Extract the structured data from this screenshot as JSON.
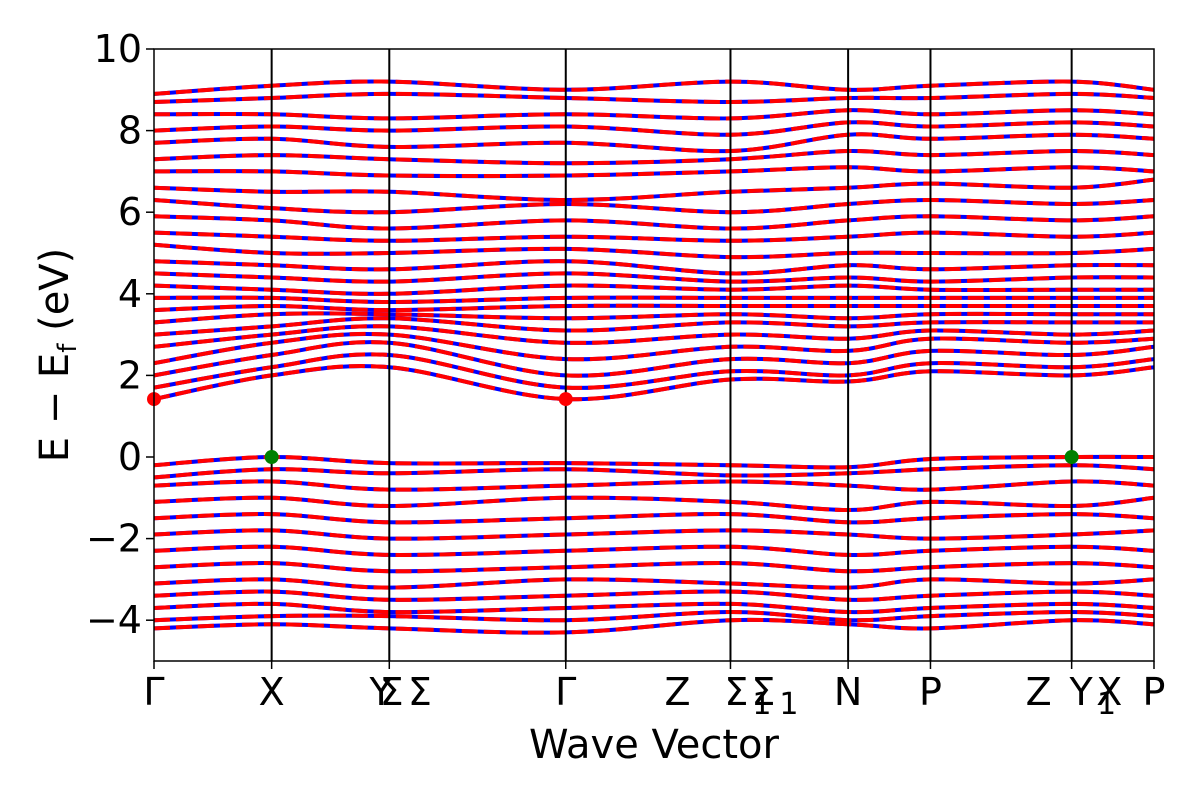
{
  "chart_data": {
    "type": "line",
    "title": "",
    "xlabel": "Wave Vector",
    "ylabel": "E − E",
    "ylabel_sub": "f",
    "ylabel_unit": " (eV)",
    "ylim": [
      -5,
      10
    ],
    "yticks": [
      -4,
      -2,
      0,
      2,
      4,
      6,
      8,
      10
    ],
    "ytick_labels": [
      "−4",
      "−2",
      "0",
      "2",
      "4",
      "6",
      "8",
      "10"
    ],
    "kpath_positions": [
      0,
      1,
      2,
      3.5,
      4.9,
      5.9,
      6.6,
      7.8,
      8.5
    ],
    "kpoints": [
      {
        "x": 0,
        "label": "Γ"
      },
      {
        "x": 1,
        "label": "X"
      },
      {
        "x": 1.93,
        "label": "Y"
      },
      {
        "x": 2.02,
        "label": "Σ"
      },
      {
        "x": 2.26,
        "label": "Σ"
      },
      {
        "x": 3.5,
        "label": "Γ"
      },
      {
        "x": 4.45,
        "label": "Z"
      },
      {
        "x": 4.95,
        "label": "Σ"
      },
      {
        "x": 5.18,
        "label": "Σ"
      },
      {
        "x": 5.9,
        "label": "N"
      },
      {
        "x": 6.6,
        "label": "P"
      },
      {
        "x": 7.52,
        "label": "Z"
      },
      {
        "x": 7.88,
        "label": "Y"
      },
      {
        "x": 8.12,
        "label": "X"
      },
      {
        "x": 8.5,
        "label": "P"
      }
    ],
    "kpoint_subscripts": [
      {
        "x": 4.95,
        "label": "1"
      },
      {
        "x": 5.18,
        "label": "1"
      },
      {
        "x": 7.88,
        "label": "1"
      }
    ],
    "vbm": [
      {
        "x": 1.0,
        "y": 0.0
      },
      {
        "x": 7.8,
        "y": 0.0
      }
    ],
    "cbm": [
      {
        "x": 0.0,
        "y": 1.42
      },
      {
        "x": 3.5,
        "y": 1.42
      }
    ],
    "series": [
      {
        "values_note": "",
        "style": "solid",
        "color": "#0000ff"
      },
      {
        "style": "dashed",
        "color": "#ff0000"
      }
    ],
    "bands": [
      {
        "x": [
          0,
          1,
          2,
          3.5,
          4.9,
          5.9,
          6.6,
          7.8,
          8.5
        ],
        "y": [
          -0.2,
          0.0,
          -0.15,
          -0.15,
          -0.2,
          -0.25,
          -0.05,
          0.0,
          0.0
        ]
      },
      {
        "x": [
          0,
          1,
          2,
          3.5,
          4.9,
          5.9,
          6.6,
          7.8,
          8.5
        ],
        "y": [
          -0.5,
          -0.3,
          -0.4,
          -0.3,
          -0.45,
          -0.4,
          -0.3,
          -0.2,
          -0.3
        ]
      },
      {
        "x": [
          0,
          1,
          2,
          3.5,
          4.9,
          5.9,
          6.6,
          7.8,
          8.5
        ],
        "y": [
          -0.7,
          -0.6,
          -0.8,
          -0.7,
          -0.6,
          -0.7,
          -0.8,
          -0.6,
          -0.7
        ]
      },
      {
        "x": [
          0,
          1,
          2,
          3.5,
          4.9,
          5.9,
          6.6,
          7.8,
          8.5
        ],
        "y": [
          -1.1,
          -1.0,
          -1.2,
          -1.0,
          -1.1,
          -1.3,
          -1.1,
          -1.2,
          -1.0
        ]
      },
      {
        "x": [
          0,
          1,
          2,
          3.5,
          4.9,
          5.9,
          6.6,
          7.8,
          8.5
        ],
        "y": [
          -1.5,
          -1.4,
          -1.6,
          -1.5,
          -1.4,
          -1.6,
          -1.5,
          -1.4,
          -1.5
        ]
      },
      {
        "x": [
          0,
          1,
          2,
          3.5,
          4.9,
          5.9,
          6.6,
          7.8,
          8.5
        ],
        "y": [
          -1.9,
          -1.8,
          -2.0,
          -1.9,
          -1.8,
          -1.9,
          -2.0,
          -1.9,
          -1.8
        ]
      },
      {
        "x": [
          0,
          1,
          2,
          3.5,
          4.9,
          5.9,
          6.6,
          7.8,
          8.5
        ],
        "y": [
          -2.3,
          -2.2,
          -2.4,
          -2.3,
          -2.2,
          -2.4,
          -2.3,
          -2.2,
          -2.3
        ]
      },
      {
        "x": [
          0,
          1,
          2,
          3.5,
          4.9,
          5.9,
          6.6,
          7.8,
          8.5
        ],
        "y": [
          -2.7,
          -2.6,
          -2.8,
          -2.7,
          -2.6,
          -2.8,
          -2.7,
          -2.6,
          -2.7
        ]
      },
      {
        "x": [
          0,
          1,
          2,
          3.5,
          4.9,
          5.9,
          6.6,
          7.8,
          8.5
        ],
        "y": [
          -3.1,
          -3.0,
          -3.2,
          -3.0,
          -3.1,
          -3.2,
          -3.0,
          -3.1,
          -3.0
        ]
      },
      {
        "x": [
          0,
          1,
          2,
          3.5,
          4.9,
          5.9,
          6.6,
          7.8,
          8.5
        ],
        "y": [
          -3.4,
          -3.3,
          -3.5,
          -3.4,
          -3.3,
          -3.5,
          -3.4,
          -3.3,
          -3.4
        ]
      },
      {
        "x": [
          0,
          1,
          2,
          3.5,
          4.9,
          5.9,
          6.6,
          7.8,
          8.5
        ],
        "y": [
          -3.7,
          -3.6,
          -3.8,
          -3.7,
          -3.6,
          -3.8,
          -3.7,
          -3.6,
          -3.7
        ]
      },
      {
        "x": [
          0,
          1,
          2,
          3.5,
          4.9,
          5.9,
          6.6,
          7.8,
          8.5
        ],
        "y": [
          -4.0,
          -3.9,
          -3.9,
          -4.0,
          -3.8,
          -4.0,
          -3.9,
          -3.8,
          -3.9
        ]
      },
      {
        "x": [
          0,
          1,
          2,
          3.5,
          4.9,
          5.9,
          6.6,
          7.8,
          8.5
        ],
        "y": [
          -4.2,
          -4.1,
          -4.2,
          -4.3,
          -4.0,
          -4.1,
          -4.2,
          -4.0,
          -4.1
        ]
      },
      {
        "x": [
          0,
          1,
          2,
          3.5,
          4.9,
          5.9,
          6.6,
          7.8,
          8.5
        ],
        "y": [
          1.42,
          2.0,
          2.2,
          1.42,
          1.9,
          1.85,
          2.1,
          2.0,
          2.2
        ]
      },
      {
        "x": [
          0,
          1,
          2,
          3.5,
          4.9,
          5.9,
          6.6,
          7.8,
          8.5
        ],
        "y": [
          1.7,
          2.2,
          2.5,
          1.7,
          2.1,
          2.0,
          2.3,
          2.2,
          2.4
        ]
      },
      {
        "x": [
          0,
          1,
          2,
          3.5,
          4.9,
          5.9,
          6.6,
          7.8,
          8.5
        ],
        "y": [
          2.0,
          2.5,
          2.8,
          2.0,
          2.4,
          2.3,
          2.6,
          2.5,
          2.7
        ]
      },
      {
        "x": [
          0,
          1,
          2,
          3.5,
          4.9,
          5.9,
          6.6,
          7.8,
          8.5
        ],
        "y": [
          2.3,
          2.8,
          3.0,
          2.4,
          2.7,
          2.6,
          2.9,
          2.8,
          2.9
        ]
      },
      {
        "x": [
          0,
          1,
          2,
          3.5,
          4.9,
          5.9,
          6.6,
          7.8,
          8.5
        ],
        "y": [
          2.7,
          3.0,
          3.2,
          2.8,
          3.0,
          2.9,
          3.1,
          3.0,
          3.1
        ]
      },
      {
        "x": [
          0,
          1,
          2,
          3.5,
          4.9,
          5.9,
          6.6,
          7.8,
          8.5
        ],
        "y": [
          3.0,
          3.2,
          3.4,
          3.1,
          3.3,
          3.2,
          3.3,
          3.3,
          3.3
        ]
      },
      {
        "x": [
          0,
          1,
          2,
          3.5,
          4.9,
          5.9,
          6.6,
          7.8,
          8.5
        ],
        "y": [
          3.3,
          3.5,
          3.5,
          3.4,
          3.5,
          3.4,
          3.5,
          3.5,
          3.5
        ]
      },
      {
        "x": [
          0,
          1,
          2,
          3.5,
          4.9,
          5.9,
          6.6,
          7.8,
          8.5
        ],
        "y": [
          3.6,
          3.7,
          3.6,
          3.7,
          3.7,
          3.7,
          3.7,
          3.7,
          3.7
        ]
      },
      {
        "x": [
          0,
          1,
          2,
          3.5,
          4.9,
          5.9,
          6.6,
          7.8,
          8.5
        ],
        "y": [
          3.9,
          3.9,
          3.8,
          3.9,
          3.9,
          3.9,
          3.9,
          3.9,
          3.9
        ]
      },
      {
        "x": [
          0,
          1,
          2,
          3.5,
          4.9,
          5.9,
          6.6,
          7.8,
          8.5
        ],
        "y": [
          4.2,
          4.1,
          4.0,
          4.2,
          4.1,
          4.2,
          4.1,
          4.1,
          4.1
        ]
      },
      {
        "x": [
          0,
          1,
          2,
          3.5,
          4.9,
          5.9,
          6.6,
          7.8,
          8.5
        ],
        "y": [
          4.5,
          4.4,
          4.3,
          4.5,
          4.3,
          4.4,
          4.3,
          4.4,
          4.4
        ]
      },
      {
        "x": [
          0,
          1,
          2,
          3.5,
          4.9,
          5.9,
          6.6,
          7.8,
          8.5
        ],
        "y": [
          4.8,
          4.7,
          4.6,
          4.8,
          4.5,
          4.7,
          4.6,
          4.7,
          4.7
        ]
      },
      {
        "x": [
          0,
          1,
          2,
          3.5,
          4.9,
          5.9,
          6.6,
          7.8,
          8.5
        ],
        "y": [
          5.2,
          5.0,
          5.0,
          5.1,
          4.9,
          5.0,
          5.0,
          5.0,
          5.1
        ]
      },
      {
        "x": [
          0,
          1,
          2,
          3.5,
          4.9,
          5.9,
          6.6,
          7.8,
          8.5
        ],
        "y": [
          5.5,
          5.4,
          5.3,
          5.4,
          5.3,
          5.4,
          5.5,
          5.4,
          5.5
        ]
      },
      {
        "x": [
          0,
          1,
          2,
          3.5,
          4.9,
          5.9,
          6.6,
          7.8,
          8.5
        ],
        "y": [
          5.9,
          5.8,
          5.6,
          5.8,
          5.6,
          5.8,
          5.9,
          5.8,
          5.9
        ]
      },
      {
        "x": [
          0,
          1,
          2,
          3.5,
          4.9,
          5.9,
          6.6,
          7.8,
          8.5
        ],
        "y": [
          6.3,
          6.1,
          6.0,
          6.2,
          6.0,
          6.2,
          6.3,
          6.2,
          6.3
        ]
      },
      {
        "x": [
          0,
          1,
          2,
          3.5,
          4.9,
          5.9,
          6.6,
          7.8,
          8.5
        ],
        "y": [
          6.6,
          6.5,
          6.5,
          6.3,
          6.5,
          6.6,
          6.7,
          6.6,
          6.8
        ]
      },
      {
        "x": [
          0,
          1,
          2,
          3.5,
          4.9,
          5.9,
          6.6,
          7.8,
          8.5
        ],
        "y": [
          7.0,
          7.0,
          6.9,
          6.9,
          7.0,
          7.1,
          7.0,
          7.1,
          7.0
        ]
      },
      {
        "x": [
          0,
          1,
          2,
          3.5,
          4.9,
          5.9,
          6.6,
          7.8,
          8.5
        ],
        "y": [
          7.3,
          7.4,
          7.3,
          7.2,
          7.3,
          7.5,
          7.4,
          7.5,
          7.4
        ]
      },
      {
        "x": [
          0,
          1,
          2,
          3.5,
          4.9,
          5.9,
          6.6,
          7.8,
          8.5
        ],
        "y": [
          7.7,
          7.8,
          7.6,
          7.7,
          7.5,
          7.9,
          7.8,
          7.9,
          7.8
        ]
      },
      {
        "x": [
          0,
          1,
          2,
          3.5,
          4.9,
          5.9,
          6.6,
          7.8,
          8.5
        ],
        "y": [
          8.0,
          8.1,
          8.0,
          8.1,
          7.9,
          8.2,
          8.1,
          8.2,
          8.1
        ]
      },
      {
        "x": [
          0,
          1,
          2,
          3.5,
          4.9,
          5.9,
          6.6,
          7.8,
          8.5
        ],
        "y": [
          8.4,
          8.4,
          8.3,
          8.4,
          8.3,
          8.5,
          8.4,
          8.5,
          8.4
        ]
      },
      {
        "x": [
          0,
          1,
          2,
          3.5,
          4.9,
          5.9,
          6.6,
          7.8,
          8.5
        ],
        "y": [
          8.7,
          8.8,
          8.9,
          8.8,
          8.7,
          8.8,
          8.8,
          8.9,
          8.8
        ]
      },
      {
        "x": [
          0,
          1,
          2,
          3.5,
          4.9,
          5.9,
          6.6,
          7.8,
          8.5
        ],
        "y": [
          8.9,
          9.1,
          9.2,
          9.0,
          9.2,
          9.0,
          9.1,
          9.2,
          9.0
        ]
      }
    ]
  }
}
